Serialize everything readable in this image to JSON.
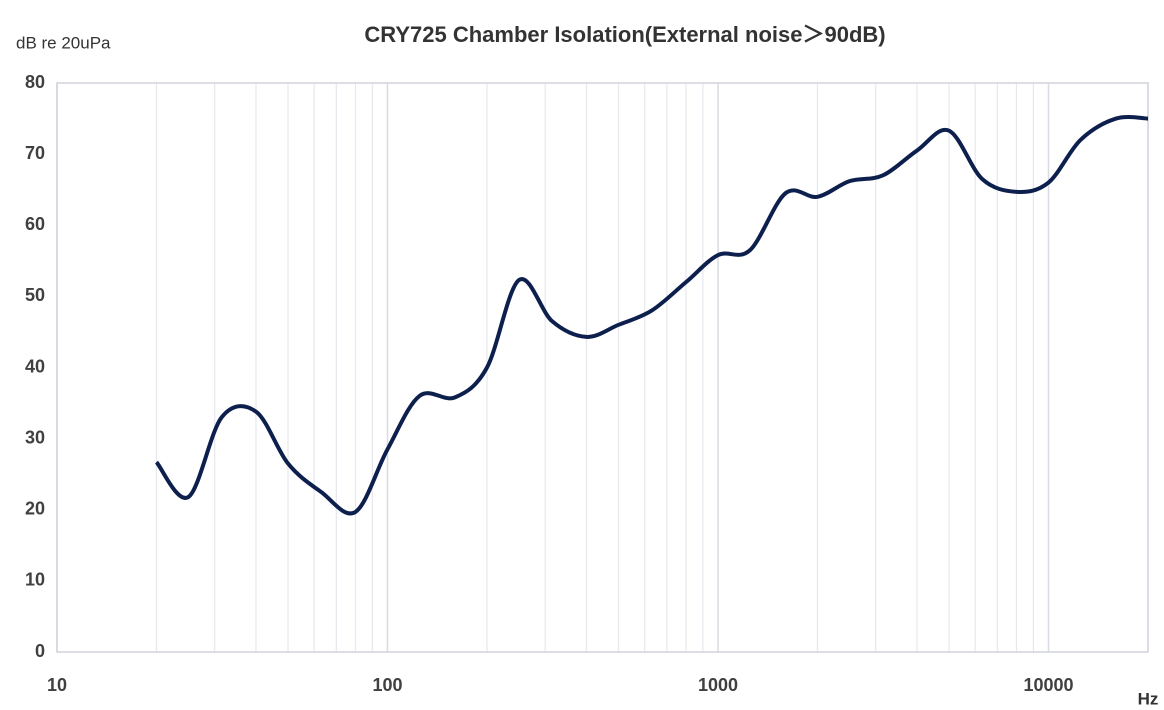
{
  "chart_data": {
    "type": "line",
    "title": "CRY725 Chamber Isolation(External noise＞90dB)",
    "y_label": "dB re 20uPa",
    "x_label": "Hz",
    "x": [
      20,
      25,
      31.5,
      40,
      50,
      63,
      80,
      100,
      125,
      160,
      200,
      250,
      315,
      400,
      500,
      630,
      800,
      1000,
      1250,
      1600,
      2000,
      2500,
      3150,
      4000,
      5000,
      6300,
      8000,
      10000,
      12500,
      16000,
      20000
    ],
    "series": [
      {
        "name": "Isolation",
        "color": "#0d1f4d",
        "values": [
          26.7,
          21.8,
          33.0,
          33.8,
          26.5,
          22.5,
          19.7,
          28.5,
          36.0,
          35.8,
          40,
          52.3,
          46.5,
          44.3,
          46,
          48,
          52,
          55.8,
          56.5,
          64.5,
          64,
          66.2,
          67,
          70.5,
          73.3,
          66.5,
          64.7,
          66,
          72,
          75,
          75
        ]
      }
    ],
    "xlim": [
      10,
      20000
    ],
    "xticks": [
      10,
      100,
      1000,
      10000
    ],
    "xscale": "log",
    "ylim": [
      0,
      80
    ],
    "yticks": [
      0,
      10,
      20,
      30,
      40,
      50,
      60,
      70,
      80
    ],
    "grid": true
  }
}
